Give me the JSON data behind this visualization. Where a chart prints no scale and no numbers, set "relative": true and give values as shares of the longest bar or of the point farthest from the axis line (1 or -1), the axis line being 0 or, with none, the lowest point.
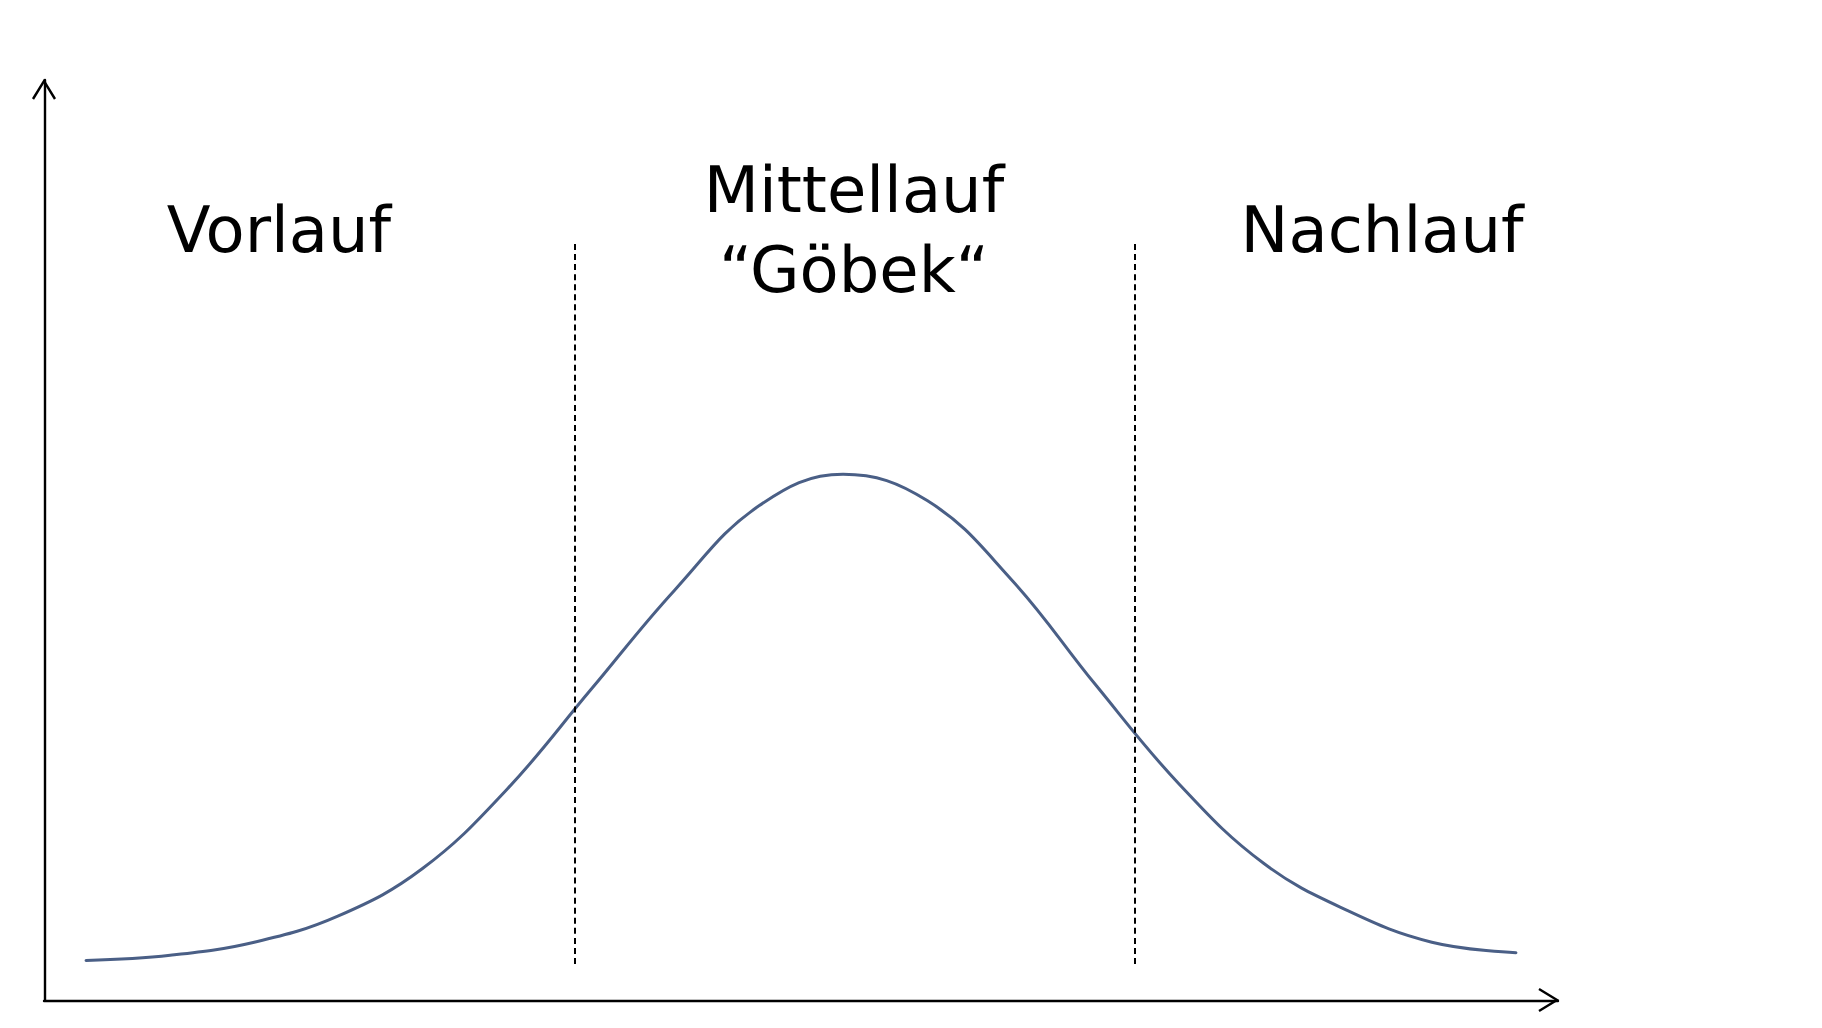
{
  "chart_data": {
    "type": "line",
    "relative": true,
    "marker": "none",
    "line_style": "solid",
    "categories": [
      null,
      null,
      null,
      null,
      null,
      null,
      null,
      null,
      null,
      null,
      null,
      null,
      null,
      null,
      null,
      null,
      null,
      null
    ],
    "series": [
      {
        "color": "#4a5f86",
        "values": [
          0.075,
          0.085,
          0.11,
          0.16,
          0.25,
          0.4,
          0.59,
          0.78,
          0.94,
          1,
          0.95,
          0.8,
          0.6,
          0.41,
          0.26,
          0.17,
          0.11,
          0.09
        ]
      }
    ],
    "annotations": [
      "Vorlauf",
      "Mittellauf\n“Göbek“",
      "Nachlauf"
    ]
  }
}
